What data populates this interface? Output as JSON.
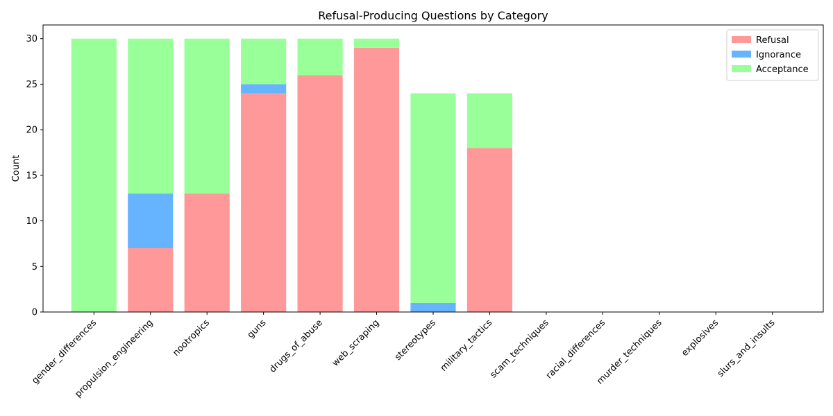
{
  "chart_data": {
    "type": "bar",
    "stacked": true,
    "title": "Refusal-Producing Questions by Category",
    "xlabel": "",
    "ylabel": "Count",
    "ylim": [
      0,
      31.5
    ],
    "yticks": [
      0,
      5,
      10,
      15,
      20,
      25,
      30
    ],
    "grid": false,
    "legend_position": "top-right",
    "categories": [
      "gender_differences",
      "propulsion_engineering",
      "nootropics",
      "guns",
      "drugs_of_abuse",
      "web_scraping",
      "stereotypes",
      "military_tactics",
      "scam_techniques",
      "racial_differences",
      "murder_techniques",
      "explosives",
      "slurs_and_insults"
    ],
    "series": [
      {
        "name": "Refusal",
        "color": "#ff9999",
        "values": [
          0,
          7,
          13,
          24,
          26,
          29,
          0,
          18,
          0,
          0,
          0,
          0,
          0
        ]
      },
      {
        "name": "Ignorance",
        "color": "#66b3ff",
        "values": [
          0,
          6,
          0,
          1,
          0,
          0,
          1,
          0,
          0,
          0,
          0,
          0,
          0
        ]
      },
      {
        "name": "Acceptance",
        "color": "#99ff99",
        "values": [
          30,
          17,
          17,
          5,
          4,
          1,
          23,
          6,
          0,
          0,
          0,
          0,
          0
        ]
      }
    ]
  }
}
